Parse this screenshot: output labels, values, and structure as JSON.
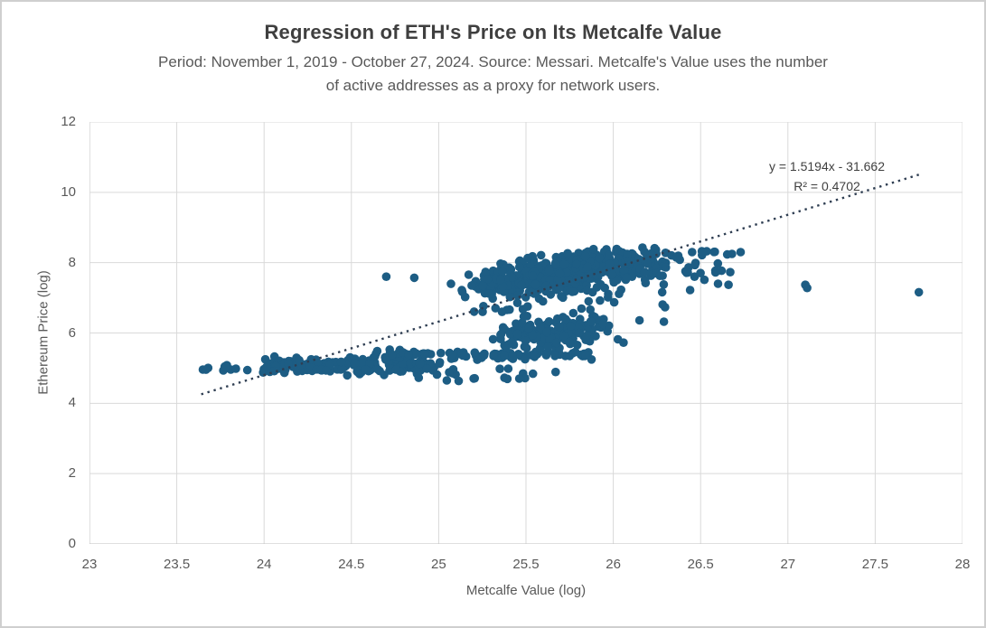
{
  "page": {
    "background": "#ffffff",
    "border_color": "#cfcfcf"
  },
  "chart_data": {
    "type": "scatter",
    "title": "Regression of ETH's Price on Its Metcalfe Value",
    "subtitle_line1": "Period: November 1, 2019 - October 27, 2024. Source: Messari. Metcalfe's Value uses the number",
    "subtitle_line2": "of active addresses as a proxy for network users.",
    "xlabel": "Metcalfe Value (log)",
    "ylabel": "Ethereum Price (log)",
    "xlim": [
      23,
      28
    ],
    "ylim": [
      0,
      12
    ],
    "x_tick_values": [
      23,
      23.5,
      24,
      24.5,
      25,
      25.5,
      26,
      26.5,
      27,
      27.5,
      28
    ],
    "x_tick_labels": [
      "23",
      "23.5",
      "24",
      "24.5",
      "25",
      "25.5",
      "26",
      "26.5",
      "27",
      "27.5",
      "28"
    ],
    "y_tick_values": [
      0,
      2,
      4,
      6,
      8,
      10,
      12
    ],
    "y_tick_labels": [
      "0",
      "2",
      "4",
      "6",
      "8",
      "10",
      "12"
    ],
    "grid": true,
    "legend": "none",
    "colors": {
      "marker": "#1d5d84",
      "trendline": "#2f3e52",
      "gridline": "#d9d9d9",
      "axis_line": "#bfbfbf",
      "title_text": "#3f3f3f",
      "label_text": "#595959",
      "annotation_text": "#3f3f3f"
    },
    "marker_radius_px": 4.8,
    "trendline": {
      "style": "dotted",
      "slope": 1.5194,
      "intercept": -31.662,
      "x_start": 23.64,
      "x_end": 27.76,
      "equation": "y = 1.5194x - 31.662",
      "r_squared": "R² = 0.4702"
    },
    "clusters": [
      {
        "name": "left-leadin-band",
        "count": 10,
        "seed": 11,
        "x_dist": "uniform",
        "x_min": 23.62,
        "x_max": 23.99,
        "y_mean": 5.03,
        "y_sd": 0.08,
        "y_min": 4.87,
        "y_max": 5.2
      },
      {
        "name": "lower-left-band",
        "count": 195,
        "seed": 22,
        "x_dist": "uniform",
        "x_min": 23.99,
        "x_max": 25.02,
        "y_mean": 5.08,
        "y_sd": 0.12,
        "y_min": 4.78,
        "y_max": 5.45
      },
      {
        "name": "tight-mid-band",
        "count": 90,
        "seed": 33,
        "x_dist": "uniform",
        "x_min": 24.62,
        "x_max": 25.88,
        "y_mean": 5.38,
        "y_sd": 0.06,
        "y_min": 5.24,
        "y_max": 5.54
      },
      {
        "name": "low-sparse-row",
        "count": 16,
        "seed": 44,
        "x_dist": "uniform",
        "x_min": 24.88,
        "x_max": 25.5,
        "y_mean": 4.82,
        "y_sd": 0.1,
        "y_min": 4.6,
        "y_max": 5.02
      },
      {
        "name": "middle-cluster",
        "count": 170,
        "seed": 55,
        "x_dist": "gauss",
        "x_mean": 25.66,
        "x_sd": 0.17,
        "x_min": 25.28,
        "x_max": 26.18,
        "y_mean": 6.02,
        "y_sd": 0.26,
        "slope": 0.5,
        "y_min": 5.56,
        "y_max": 6.58
      },
      {
        "name": "gap-sparse",
        "count": 18,
        "seed": 66,
        "x_dist": "uniform",
        "x_min": 25.2,
        "x_max": 26.32,
        "y_dist": "uniform",
        "y_min": 6.6,
        "y_max": 6.95
      },
      {
        "name": "main-upper-blob",
        "count": 620,
        "seed": 77,
        "x_dist": "gauss",
        "x_mean": 25.73,
        "x_sd": 0.27,
        "x_min": 25.04,
        "x_max": 26.48,
        "y_mean": 7.72,
        "y_sd": 0.27,
        "slope": 0.55,
        "y_min": 6.97,
        "y_max": 8.5
      },
      {
        "name": "top-right-tail",
        "count": 9,
        "seed": 88,
        "x_dist": "uniform",
        "x_min": 26.42,
        "x_max": 26.73,
        "y_mean": 8.29,
        "y_sd": 0.06,
        "y_min": 8.18,
        "y_max": 8.4
      },
      {
        "name": "right-sparse",
        "count": 10,
        "seed": 99,
        "x_dist": "uniform",
        "x_min": 26.33,
        "x_max": 26.7,
        "y_mean": 7.85,
        "y_sd": 0.2,
        "y_min": 7.45,
        "y_max": 8.15
      }
    ],
    "outlier_points": [
      [
        24.7,
        7.6
      ],
      [
        24.86,
        7.57
      ],
      [
        25.54,
        4.84
      ],
      [
        25.67,
        4.89
      ],
      [
        26.15,
        6.36
      ],
      [
        26.29,
        6.32
      ],
      [
        26.28,
        7.16
      ],
      [
        26.44,
        7.22
      ],
      [
        26.6,
        7.4
      ],
      [
        26.66,
        7.37
      ],
      [
        26.62,
        7.77
      ],
      [
        26.67,
        7.73
      ],
      [
        27.1,
        7.37
      ],
      [
        27.11,
        7.28
      ],
      [
        27.75,
        7.16
      ]
    ]
  }
}
